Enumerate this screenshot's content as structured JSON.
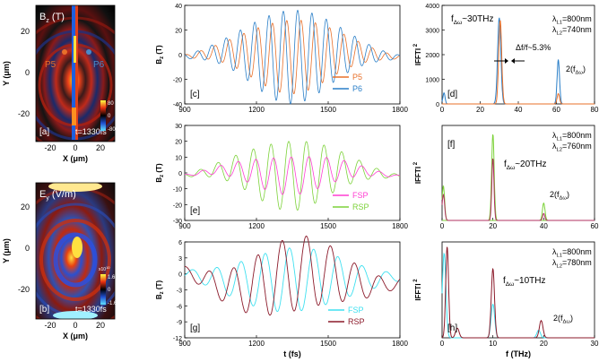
{
  "colors": {
    "p5": "#e8702a",
    "p6": "#2a7fc8",
    "fsp": "#ff3fd2",
    "rsp": "#7dd23a",
    "fsp_h": "#3fe0f0",
    "rsp_h": "#8b1a2a",
    "lambda_orange": "#e8702a",
    "lambda_blue": "#2a7fc8"
  },
  "panel_a": {
    "title": "B",
    "title_sub": "z",
    "title_unit": " (T)",
    "label": "[a]",
    "time": "t=1330fs",
    "xlabel": "X (μm)",
    "ylabel": "Y (μm)",
    "xticks": [
      "-20",
      "0",
      "20"
    ],
    "yticks": [
      "20",
      "0",
      "-20"
    ],
    "probe1": "P5",
    "probe2": "P6",
    "cbar_ticks": [
      "80",
      "0",
      "-80"
    ]
  },
  "panel_b": {
    "title": "E",
    "title_sub": "y",
    "title_unit": " (V/m)",
    "label": "[b]",
    "time": "t=1330fs",
    "xlabel": "X (μm)",
    "ylabel": "Y (μm)",
    "xticks": [
      "-20",
      "0",
      "20"
    ],
    "yticks": [
      "20",
      "0",
      "-20"
    ],
    "cbar_exp": "x10",
    "cbar_exp_sup": "10",
    "cbar_ticks": [
      "1.6",
      "0",
      "-1.6"
    ]
  },
  "chart_data": [
    {
      "id": "c",
      "type": "line",
      "label": "[c]",
      "xlabel": "",
      "ylabel": "B",
      "ylabel_sub": "z",
      "ylabel_unit": " (T)",
      "xlim": [
        900,
        1800
      ],
      "ylim": [
        -40,
        40
      ],
      "xticks": [
        "900",
        "1200",
        "1500",
        "1800"
      ],
      "yticks": [
        "40",
        "20",
        "0",
        "-20",
        "-40"
      ],
      "series": [
        {
          "name": "P5",
          "envelope_peak": 30,
          "color": "#e8702a"
        },
        {
          "name": "P6",
          "envelope_peak": 38,
          "color": "#2a7fc8"
        }
      ]
    },
    {
      "id": "d",
      "type": "line",
      "label": "[d]",
      "ylabel": "IFFTI",
      "ylabel_sup": "2",
      "xlim": [
        0,
        80
      ],
      "ylim": [
        0,
        4000
      ],
      "xticks": [
        "0",
        "20",
        "40",
        "60",
        "80"
      ],
      "yticks": [
        "4000",
        "3000",
        "2000",
        "1000",
        "0"
      ],
      "annotation_freq": "f",
      "annotation_freq_sub": "Δω",
      "annotation_freq_val": "~30THz",
      "annotation_df": "Δf/f~5.3%",
      "annotation_2f": "2(f",
      "annotation_2f_sub": "Δω",
      "annotation_2f_end": ")",
      "lambda1": "λ",
      "lambda1_sub": "L1",
      "lambda1_val": "=800nm",
      "lambda2": "λ",
      "lambda2_sub": "L2",
      "lambda2_val": "=740nm",
      "peaks": [
        {
          "x": 1,
          "y": 450
        },
        {
          "x": 30,
          "y": 3500
        },
        {
          "x": 61,
          "y": 1800
        }
      ]
    },
    {
      "id": "e",
      "type": "line",
      "label": "[e]",
      "ylabel": "B",
      "ylabel_sub": "z",
      "ylabel_unit": " (T)",
      "xlim": [
        900,
        1800
      ],
      "ylim": [
        -30,
        30
      ],
      "xticks": [
        "900",
        "1200",
        "1500",
        "1800"
      ],
      "yticks": [
        "30",
        "20",
        "10",
        "0",
        "-10",
        "-20",
        "-30"
      ],
      "series": [
        {
          "name": "FSP",
          "envelope_peak": 12,
          "color": "#ff3fd2"
        },
        {
          "name": "RSP",
          "envelope_peak": 22,
          "color": "#7dd23a"
        }
      ]
    },
    {
      "id": "f",
      "type": "line",
      "label": "[f]",
      "ylabel": "IFFTI",
      "ylabel_sup": "2",
      "xlim": [
        0,
        60
      ],
      "xticks": [
        "0",
        "20",
        "40",
        "60"
      ],
      "annotation_freq": "f",
      "annotation_freq_sub": "Δω",
      "annotation_freq_val": "~20THz",
      "annotation_2f": "2(f",
      "annotation_2f_sub": "Δω",
      "annotation_2f_end": ")",
      "lambda1": "λ",
      "lambda1_sub": "L1",
      "lambda1_val": "=800nm",
      "lambda2": "λ",
      "lambda2_sub": "L2",
      "lambda2_val": "=760nm"
    },
    {
      "id": "g",
      "type": "line",
      "label": "[g]",
      "xlabel": "t (fs)",
      "ylabel": "B",
      "ylabel_sub": "z",
      "ylabel_unit": " (T)",
      "xlim": [
        900,
        1800
      ],
      "ylim": [
        -12,
        6
      ],
      "xticks": [
        "900",
        "1200",
        "1500",
        "1800"
      ],
      "yticks": [
        "6",
        "3",
        "0",
        "-3",
        "-6",
        "-9",
        "-12"
      ],
      "series": [
        {
          "name": "FSP",
          "color": "#3fe0f0"
        },
        {
          "name": "RSP",
          "color": "#8b1a2a"
        }
      ]
    },
    {
      "id": "h",
      "type": "line",
      "label": "[h]",
      "xlabel": "f (THz)",
      "ylabel": "IFFTI",
      "ylabel_sup": "2",
      "xlim": [
        0,
        30
      ],
      "xticks": [
        "0",
        "10",
        "20",
        "30"
      ],
      "annotation_freq": "f",
      "annotation_freq_sub": "Δω",
      "annotation_freq_val": "~10THz",
      "annotation_2f": "2(f",
      "annotation_2f_sub": "Δω",
      "annotation_2f_end": ")",
      "lambda1": "λ",
      "lambda1_sub": "L1",
      "lambda1_val": "=800nm",
      "lambda2": "λ",
      "lambda2_sub": "L2",
      "lambda2_val": "=780nm"
    }
  ]
}
